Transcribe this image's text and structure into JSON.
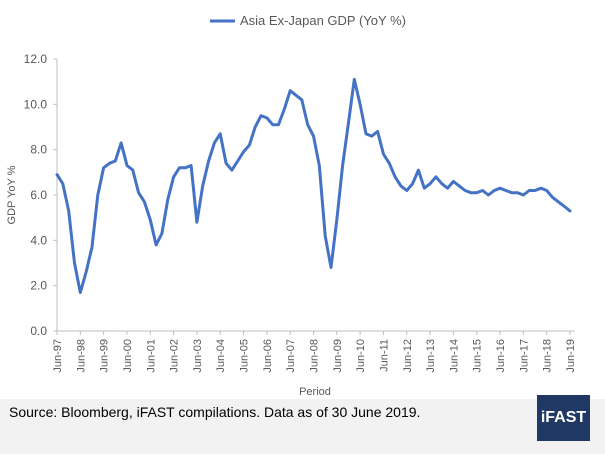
{
  "colors": {
    "series": "#4472c4",
    "axis": "#bfbfbf",
    "text": "#595959",
    "logo_bg": "#1f3864"
  },
  "footer": {
    "source": "Source: Bloomberg, iFAST compilations. Data as of 30 June 2019.",
    "logo": "iFAST"
  },
  "chart_data": {
    "type": "line",
    "title": "",
    "xlabel": "Period",
    "ylabel": "GDP YoY %",
    "ylim": [
      0,
      12
    ],
    "yticks": [
      "0.0",
      "2.0",
      "4.0",
      "6.0",
      "8.0",
      "10.0",
      "12.0"
    ],
    "grid": false,
    "legend": "top-center",
    "x_tick_labels": [
      "Jun-97",
      "Jun-98",
      "Jun-99",
      "Jun-00",
      "Jun-01",
      "Jun-02",
      "Jun-03",
      "Jun-04",
      "Jun-05",
      "Jun-06",
      "Jun-07",
      "Jun-08",
      "Jun-09",
      "Jun-10",
      "Jun-11",
      "Jun-12",
      "Jun-13",
      "Jun-14",
      "Jun-15",
      "Jun-16",
      "Jun-17",
      "Jun-18",
      "Jun-19"
    ],
    "series": [
      {
        "name": "Asia Ex-Japan GDP (YoY %)",
        "values": [
          6.9,
          6.5,
          5.3,
          3.0,
          1.7,
          2.6,
          3.7,
          6.0,
          7.2,
          7.4,
          7.5,
          8.3,
          7.3,
          7.1,
          6.1,
          5.7,
          4.9,
          3.8,
          4.3,
          5.8,
          6.8,
          7.2,
          7.2,
          7.3,
          4.8,
          6.4,
          7.5,
          8.3,
          8.7,
          7.4,
          7.1,
          7.5,
          7.9,
          8.2,
          9.0,
          9.5,
          9.4,
          9.1,
          9.1,
          9.8,
          10.6,
          10.4,
          10.2,
          9.1,
          8.6,
          7.3,
          4.2,
          2.8,
          4.9,
          7.3,
          9.2,
          11.1,
          10.0,
          8.7,
          8.6,
          8.8,
          7.8,
          7.4,
          6.8,
          6.4,
          6.2,
          6.5,
          7.1,
          6.3,
          6.5,
          6.8,
          6.5,
          6.3,
          6.6,
          6.4,
          6.2,
          6.1,
          6.1,
          6.2,
          6.0,
          6.2,
          6.3,
          6.2,
          6.1,
          6.1,
          6.0,
          6.2,
          6.2,
          6.3,
          6.2,
          5.9,
          5.7,
          5.5,
          5.3
        ]
      }
    ]
  }
}
